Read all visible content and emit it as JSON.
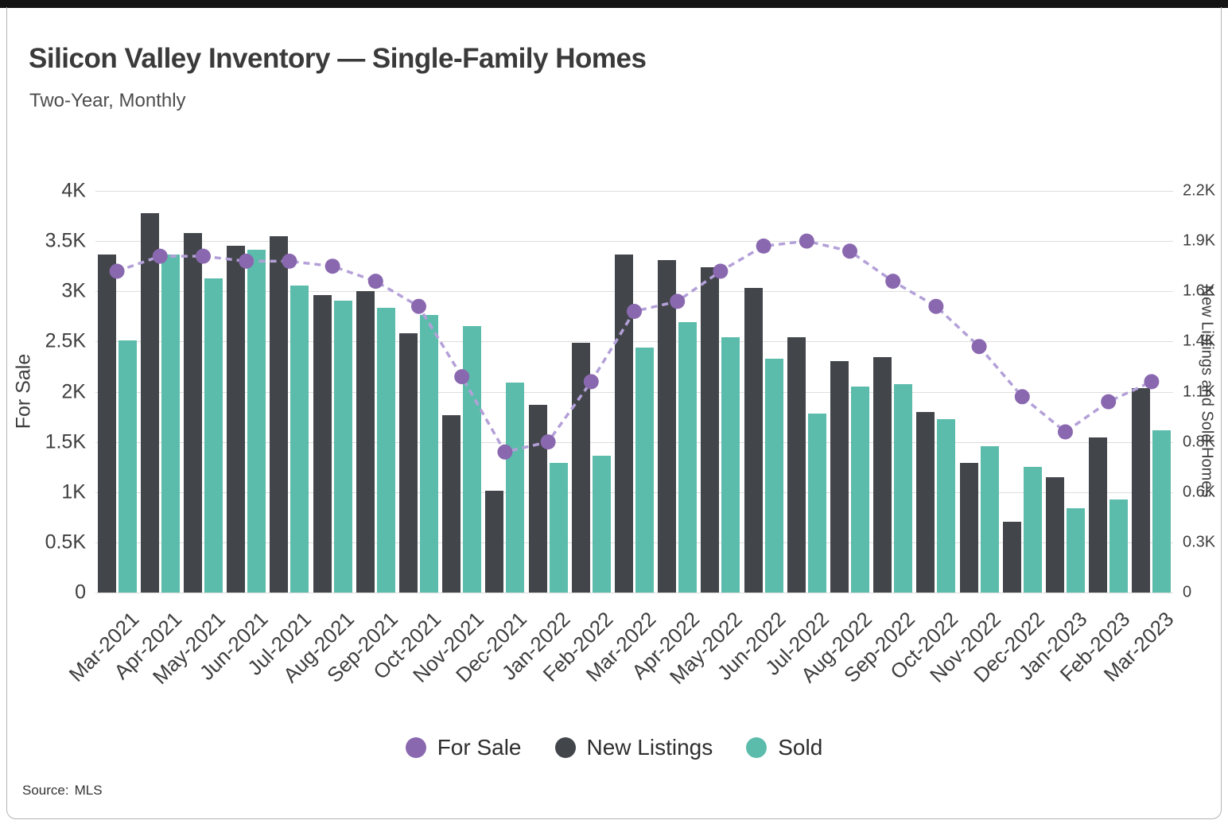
{
  "source": {
    "label": "Source:",
    "value": "MLS"
  },
  "chart_data": {
    "type": "bar",
    "subtype": "grouped-bars-with-line-dual-axis",
    "title": "Silicon Valley Inventory — Single-Family Homes",
    "subtitle": "Two-Year, Monthly",
    "unit": "K",
    "grid": true,
    "legend_position": "bottom",
    "categories": [
      "Mar-2021",
      "Apr-2021",
      "May-2021",
      "Jun-2021",
      "Jul-2021",
      "Aug-2021",
      "Sep-2021",
      "Oct-2021",
      "Nov-2021",
      "Dec-2021",
      "Jan-2022",
      "Feb-2022",
      "Mar-2022",
      "Apr-2022",
      "May-2022",
      "Jun-2022",
      "Jul-2022",
      "Aug-2022",
      "Sep-2022",
      "Oct-2022",
      "Nov-2022",
      "Dec-2022",
      "Jan-2023",
      "Feb-2023",
      "Mar-2023"
    ],
    "series": [
      {
        "name": "For Sale",
        "type": "line",
        "axis": "left",
        "color": "#8a68b0",
        "line_color": "#b4a0d8",
        "values": [
          3.2,
          3.35,
          3.35,
          3.3,
          3.3,
          3.25,
          3.1,
          2.85,
          2.15,
          1.4,
          1.5,
          2.1,
          2.8,
          2.9,
          3.2,
          3.45,
          3.5,
          3.4,
          3.1,
          2.85,
          2.45,
          1.95,
          1.6,
          1.9,
          2.1
        ]
      },
      {
        "name": "New Listings",
        "type": "bar",
        "axis": "right",
        "color": "#42464a",
        "values": [
          1.85,
          2.08,
          1.97,
          1.9,
          1.95,
          1.63,
          1.65,
          1.42,
          0.97,
          0.56,
          1.03,
          1.37,
          1.85,
          1.82,
          1.78,
          1.67,
          1.4,
          1.27,
          1.29,
          0.99,
          0.71,
          0.39,
          0.63,
          0.85,
          1.12
        ]
      },
      {
        "name": "Sold",
        "type": "bar",
        "axis": "right",
        "color": "#5cbcab",
        "values": [
          1.38,
          1.85,
          1.72,
          1.88,
          1.68,
          1.6,
          1.56,
          1.52,
          1.46,
          1.15,
          0.71,
          0.75,
          1.34,
          1.48,
          1.4,
          1.28,
          0.98,
          1.13,
          1.14,
          0.95,
          0.8,
          0.69,
          0.46,
          0.51,
          0.89
        ]
      }
    ],
    "left_axis": {
      "label": "For Sale",
      "max": 4,
      "tick_labels_top_to_bottom": [
        "4K",
        "3.5K",
        "3K",
        "2.5K",
        "2K",
        "1.5K",
        "1K",
        "0.5K",
        "0"
      ]
    },
    "right_axis": {
      "label": "New Listings and Sold Homes",
      "max": 2.2,
      "tick_labels_top_to_bottom": [
        "2.2K",
        "1.9K",
        "1.6K",
        "1.4K",
        "1.1K",
        "0.8K",
        "0.6K",
        "0.3K",
        "0"
      ]
    }
  }
}
